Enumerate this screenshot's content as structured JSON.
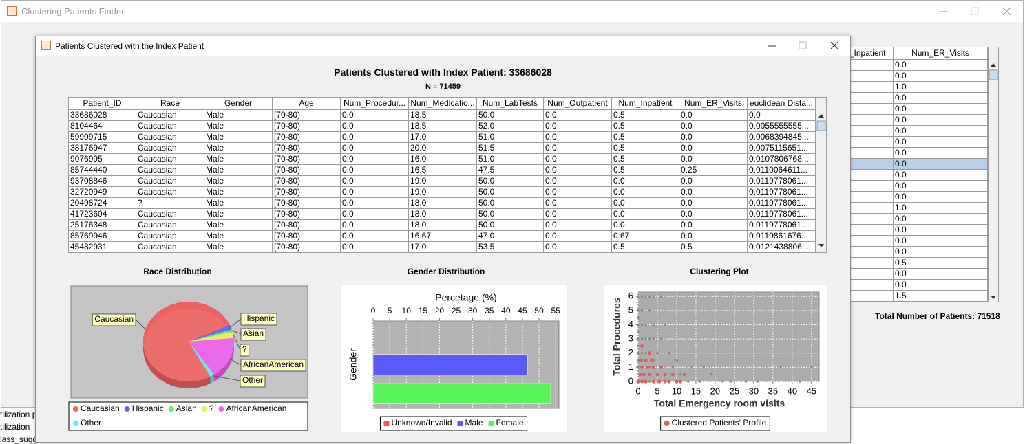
{
  "main_window": {
    "title": "Clustering Patients Finder",
    "table": {
      "columns": [
        "Num_Inpatient",
        "Num_ER_Visits"
      ],
      "er_values": [
        "0.0",
        "0.0",
        "1.0",
        "0.0",
        "0.0",
        "0.0",
        "0.0",
        "0.0",
        "0.0",
        "0.0",
        "0.0",
        "0.0",
        "0.0",
        "1.0",
        "0.0",
        "0.0",
        "0.0",
        "0.0",
        "0.5",
        "0.0",
        "0.0",
        "1.5"
      ],
      "selected_row": 9
    },
    "total": "Total Number of Patients: 71518",
    "background_fragments": [
      "tilization p",
      "tilization",
      "lass_sugge"
    ]
  },
  "dialog": {
    "title": "Patients Clustered with the Index Patient",
    "heading": "Patients Clustered with Index Patient: 33686028",
    "subheading": "N = 71459",
    "table": {
      "columns": [
        "Patient_ID",
        "Race",
        "Gender",
        "Age",
        "Num_Procedur...",
        "Num_Medicatio...",
        "Num_LabTests",
        "Num_Outpatient",
        "Num_Inpatient",
        "Num_ER_Visits",
        "euclidean Dista..."
      ],
      "rows": [
        [
          "33686028",
          "Caucasian",
          "Male",
          "[70-80)",
          "0.0",
          "18.5",
          "50.0",
          "0.0",
          "0.5",
          "0.0",
          "0.0"
        ],
        [
          "8104464",
          "Caucasian",
          "Male",
          "[70-80)",
          "0.0",
          "18.5",
          "52.0",
          "0.0",
          "0.5",
          "0.0",
          "0.0055555555..."
        ],
        [
          "59909715",
          "Caucasian",
          "Male",
          "[70-80)",
          "0.0",
          "17.0",
          "51.0",
          "0.0",
          "0.5",
          "0.0",
          "0.0068394845..."
        ],
        [
          "38176947",
          "Caucasian",
          "Male",
          "[70-80)",
          "0.0",
          "20.0",
          "51.5",
          "0.0",
          "0.5",
          "0.0",
          "0.0075115651..."
        ],
        [
          "9076995",
          "Caucasian",
          "Male",
          "[70-80)",
          "0.0",
          "16.0",
          "51.0",
          "0.0",
          "0.5",
          "0.0",
          "0.0107806768..."
        ],
        [
          "85744440",
          "Caucasian",
          "Male",
          "[70-80)",
          "0.0",
          "16.5",
          "47.5",
          "0.0",
          "0.5",
          "0.25",
          "0.0110064611..."
        ],
        [
          "93708846",
          "Caucasian",
          "Male",
          "[70-80)",
          "0.0",
          "19.0",
          "50.0",
          "0.0",
          "0.0",
          "0.0",
          "0.0119778061..."
        ],
        [
          "32720949",
          "Caucasian",
          "Male",
          "[70-80)",
          "0.0",
          "19.0",
          "50.0",
          "0.0",
          "0.0",
          "0.0",
          "0.0119778061..."
        ],
        [
          "20498724",
          "?",
          "Male",
          "[70-80)",
          "0.0",
          "18.0",
          "50.0",
          "0.0",
          "0.0",
          "0.0",
          "0.0119778061..."
        ],
        [
          "41723604",
          "Caucasian",
          "Male",
          "[70-80)",
          "0.0",
          "18.0",
          "50.0",
          "0.0",
          "0.0",
          "0.0",
          "0.0119778061..."
        ],
        [
          "25176348",
          "Caucasian",
          "Male",
          "[70-80)",
          "0.0",
          "18.0",
          "50.0",
          "0.0",
          "0.0",
          "0.0",
          "0.0119778061..."
        ],
        [
          "85769946",
          "Caucasian",
          "Male",
          "[70-80)",
          "0.0",
          "16.67",
          "47.0",
          "0.0",
          "0.67",
          "0.0",
          "0.0119861676..."
        ],
        [
          "45482931",
          "Caucasian",
          "Male",
          "[70-80)",
          "0.0",
          "17.0",
          "53.5",
          "0.0",
          "0.5",
          "0.5",
          "0.0121438806..."
        ]
      ]
    }
  },
  "chart_data": [
    {
      "type": "pie",
      "title": "Race Distribution",
      "categories": [
        "Caucasian",
        "Hispanic",
        "Asian",
        "?",
        "AfricanAmerican",
        "Other"
      ],
      "values": [
        76,
        2,
        1,
        2.5,
        17,
        1.5
      ],
      "colors": [
        "#f06464",
        "#6262ee",
        "#62ee62",
        "#eeee62",
        "#ee62ee",
        "#62eeee"
      ],
      "legend": "bottom"
    },
    {
      "type": "bar",
      "orientation": "horizontal",
      "title": "Gender Distribution",
      "x_label": "Percetage (%)",
      "y_label": "Gender",
      "categories": [
        "Unknown/Invalid",
        "Male",
        "Female"
      ],
      "values": [
        0,
        46.5,
        53.5
      ],
      "colors": [
        "#f05a5a",
        "#5a5af5",
        "#5af55a"
      ],
      "xlim": [
        0,
        56
      ],
      "xticks": [
        0,
        5,
        10,
        15,
        20,
        25,
        30,
        35,
        40,
        45,
        50,
        55
      ],
      "grid": true,
      "legend": "bottom"
    },
    {
      "type": "scatter",
      "title": "Clustering Plot",
      "x_label": "Total Emergency room visits",
      "y_label": "Total Procedures",
      "xlim": [
        0,
        47
      ],
      "ylim": [
        0,
        6.3
      ],
      "xticks": [
        0,
        5,
        10,
        15,
        20,
        25,
        30,
        35,
        40,
        45
      ],
      "yticks": [
        0,
        1,
        2,
        3,
        4,
        5,
        6
      ],
      "grid": true,
      "legend": "bottom",
      "series": [
        {
          "color": "#8a8a8a",
          "x": [
            0,
            1,
            2,
            3,
            4,
            6,
            0,
            1,
            3,
            0,
            0,
            1,
            2,
            4,
            7,
            0,
            0,
            1,
            2,
            3,
            4,
            6,
            0,
            1,
            0,
            1,
            2,
            3,
            5,
            8,
            0,
            1,
            2,
            4,
            10,
            0,
            3,
            6,
            9,
            14,
            17,
            37,
            45,
            1,
            5,
            11,
            19,
            3,
            8,
            13,
            16,
            22,
            24,
            28,
            31,
            42
          ],
          "y": [
            6,
            6,
            6,
            6,
            6,
            6,
            5,
            5,
            5,
            4.5,
            4,
            4,
            4,
            4,
            4,
            3.5,
            3,
            3,
            3,
            3,
            3,
            3,
            2.5,
            2.5,
            2,
            2,
            2,
            2,
            2,
            2,
            1.5,
            1.5,
            1.5,
            1.5,
            1.5,
            1,
            1,
            1,
            1,
            1,
            1,
            1,
            1,
            0.5,
            0.5,
            0.5,
            0.5,
            0,
            0,
            0,
            0,
            0,
            0,
            0,
            0,
            0
          ]
        },
        {
          "name": "Clustered Patients' Profile",
          "color": "#dd5f5f",
          "x": [
            0,
            0.5,
            1,
            1,
            1.5,
            2,
            2,
            2.5,
            3,
            3,
            4,
            4,
            5,
            5.5,
            6,
            7,
            7,
            8,
            9,
            10,
            11,
            12,
            3.5,
            1,
            0.5
          ],
          "y": [
            0,
            0.5,
            0,
            1,
            0.5,
            0,
            1.5,
            1,
            0.5,
            2,
            0,
            1,
            0.5,
            0,
            1,
            0,
            0.5,
            0,
            0.5,
            0,
            0,
            0.5,
            1.5,
            2.5,
            1.5
          ]
        }
      ]
    }
  ]
}
